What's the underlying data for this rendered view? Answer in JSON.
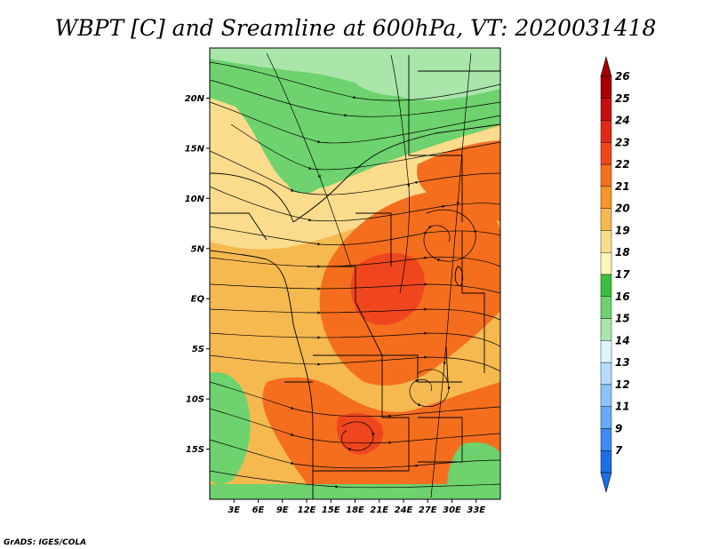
{
  "title": "WBPT [C] and Sreamline at 600hPa, VT: 2020031418",
  "credit": "GrADS: IGES/COLA",
  "map": {
    "lon_range": [
      0,
      36
    ],
    "lat_range": [
      -20,
      25
    ],
    "lat_ticks": [
      {
        "lat": 20,
        "label": "20N"
      },
      {
        "lat": 15,
        "label": "15N"
      },
      {
        "lat": 10,
        "label": "10N"
      },
      {
        "lat": 5,
        "label": "5N"
      },
      {
        "lat": 0,
        "label": "EQ"
      },
      {
        "lat": -5,
        "label": "5S"
      },
      {
        "lat": -10,
        "label": "10S"
      },
      {
        "lat": -15,
        "label": "15S"
      }
    ],
    "lon_ticks": [
      {
        "lon": 3,
        "label": "3E"
      },
      {
        "lon": 6,
        "label": "6E"
      },
      {
        "lon": 9,
        "label": "9E"
      },
      {
        "lon": 12,
        "label": "12E"
      },
      {
        "lon": 15,
        "label": "15E"
      },
      {
        "lon": 18,
        "label": "18E"
      },
      {
        "lon": 21,
        "label": "21E"
      },
      {
        "lon": 24,
        "label": "24E"
      },
      {
        "lon": 27,
        "label": "27E"
      },
      {
        "lon": 30,
        "label": "30E"
      },
      {
        "lon": 33,
        "label": "33E"
      }
    ]
  },
  "colorbar": {
    "labels": [
      "26",
      "25",
      "24",
      "23",
      "22",
      "21",
      "20",
      "19",
      "18",
      "17",
      "16",
      "15",
      "14",
      "13",
      "12",
      "11",
      "9",
      "7"
    ],
    "colors": [
      "#a50000",
      "#c80f0f",
      "#e12814",
      "#f0461e",
      "#f56e1e",
      "#f59628",
      "#f5b950",
      "#fadc8c",
      "#fff5b4",
      "#3cbe3c",
      "#6ed26e",
      "#aae6aa",
      "#e1f5ff",
      "#b4dcff",
      "#8cc3fa",
      "#64aaf5",
      "#3c8cf0",
      "#1e6ee6"
    ],
    "top_tip_color": "#a50000",
    "bottom_tip_color": "#1e6ee6"
  }
}
